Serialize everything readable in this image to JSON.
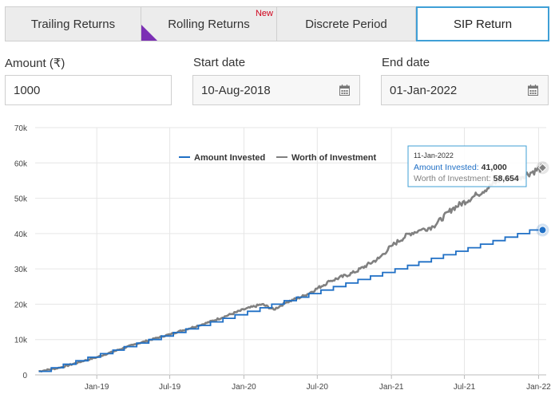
{
  "tabs": [
    {
      "label": "Trailing Returns",
      "active": false,
      "badge": ""
    },
    {
      "label": "Rolling Returns",
      "active": false,
      "badge": "New"
    },
    {
      "label": "Discrete Period",
      "active": false,
      "badge": ""
    },
    {
      "label": "SIP Return",
      "active": true,
      "badge": ""
    }
  ],
  "form": {
    "amount_label": "Amount (₹)",
    "amount_value": "1000",
    "start_label": "Start date",
    "start_value": "10-Aug-2018",
    "end_label": "End date",
    "end_value": "01-Jan-2022",
    "calendar_icon": "calendar-icon"
  },
  "colors": {
    "invested": "#1f6fc5",
    "worth": "#808080",
    "tooltip_border": "#3f9fd6",
    "active_tab_border": "#3f9fd6",
    "new_badge": "#d0021b",
    "ribbon": "#7b2fb4"
  },
  "chart_data": {
    "type": "line",
    "title": "",
    "xlabel": "",
    "ylabel": "",
    "x_ticks": [
      "Jan-19",
      "Jul-19",
      "Jan-20",
      "Jul-20",
      "Jan-21",
      "Jul-21",
      "Jan-22"
    ],
    "y_ticks": [
      "0",
      "10k",
      "20k",
      "30k",
      "40k",
      "50k",
      "60k",
      "70k"
    ],
    "ylim": [
      0,
      70000
    ],
    "xlim": [
      "2018-08-01",
      "2022-01-20"
    ],
    "grid": true,
    "legend_position": "top",
    "series": [
      {
        "name": "Amount Invested",
        "color": "#1f6fc5",
        "step_dates": [
          "2018-08-10",
          "2018-09-10",
          "2018-10-10",
          "2018-11-10",
          "2018-12-10",
          "2019-01-10",
          "2019-02-10",
          "2019-03-10",
          "2019-04-10",
          "2019-05-10",
          "2019-06-10",
          "2019-07-10",
          "2019-08-10",
          "2019-09-10",
          "2019-10-10",
          "2019-11-10",
          "2019-12-10",
          "2020-01-10",
          "2020-02-10",
          "2020-03-10",
          "2020-04-10",
          "2020-05-10",
          "2020-06-10",
          "2020-07-10",
          "2020-08-10",
          "2020-09-10",
          "2020-10-10",
          "2020-11-10",
          "2020-12-10",
          "2021-01-10",
          "2021-02-10",
          "2021-03-10",
          "2021-04-10",
          "2021-05-10",
          "2021-06-10",
          "2021-07-10",
          "2021-08-10",
          "2021-09-10",
          "2021-10-10",
          "2021-11-10",
          "2021-12-10"
        ],
        "step_amount": 1000,
        "final_value": 41000
      },
      {
        "name": "Worth of Investment",
        "color": "#808080",
        "points": [
          [
            "2018-08-10",
            1000
          ],
          [
            "2018-10-01",
            2000
          ],
          [
            "2018-12-01",
            4000
          ],
          [
            "2019-01-01",
            5000
          ],
          [
            "2019-04-01",
            8500
          ],
          [
            "2019-07-01",
            11500
          ],
          [
            "2019-10-01",
            14700
          ],
          [
            "2020-01-01",
            18500
          ],
          [
            "2020-02-15",
            20000
          ],
          [
            "2020-03-15",
            18500
          ],
          [
            "2020-04-15",
            20500
          ],
          [
            "2020-06-01",
            22500
          ],
          [
            "2020-08-01",
            26500
          ],
          [
            "2020-10-01",
            29000
          ],
          [
            "2020-12-01",
            33000
          ],
          [
            "2021-01-01",
            36500
          ],
          [
            "2021-02-15",
            40000
          ],
          [
            "2021-03-15",
            41000
          ],
          [
            "2021-04-15",
            42000
          ],
          [
            "2021-06-01",
            47000
          ],
          [
            "2021-08-01",
            51000
          ],
          [
            "2021-10-01",
            55500
          ],
          [
            "2021-11-15",
            56000
          ],
          [
            "2022-01-11",
            58654
          ]
        ]
      }
    ],
    "tooltip": {
      "date": "11-Jan-2022",
      "invested_label": "Amount Invested",
      "invested_value": "41,000",
      "worth_label": "Worth of Investment",
      "worth_value": "58,654"
    }
  }
}
